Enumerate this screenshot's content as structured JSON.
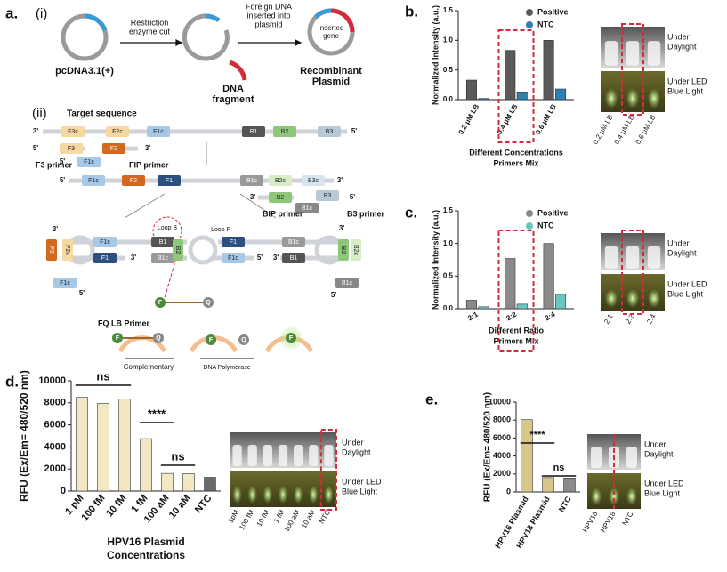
{
  "panels": {
    "a": "a.",
    "a_i": "(i)",
    "a_ii": "(ii)",
    "b": "b.",
    "c": "c.",
    "d": "d.",
    "e": "e."
  },
  "diagram": {
    "part_i": {
      "plasmid": "pcDNA3.1(+)",
      "cut": [
        "Restriction",
        "enzyme cut"
      ],
      "insert": [
        "Foreign DNA",
        "inserted into",
        "plasmid"
      ],
      "fragment": [
        "DNA",
        "fragment"
      ],
      "gene": [
        "Inserted",
        "gene"
      ],
      "recombinant": [
        "Recombinant",
        "Plasmid"
      ]
    },
    "part_ii": {
      "target": "Target sequence",
      "ends": [
        "3'",
        "5'"
      ],
      "segments": [
        "F3c",
        "F2c",
        "F1c",
        "B1",
        "B2",
        "B3",
        "F3",
        "F2",
        "F1c",
        "F1c",
        "F2",
        "F1",
        "B1c",
        "B2c",
        "B3c",
        "B2",
        "B3",
        "B1c",
        "F2",
        "F2c",
        "F1c",
        "F1",
        "B1",
        "B1c",
        "B2",
        "F1c",
        "F1",
        "F1c",
        "B1c",
        "B1",
        "B2",
        "B2c",
        "B1c"
      ],
      "primers": [
        "F3 primer",
        "FIP primer",
        "BIP primer",
        "B3 primer"
      ],
      "loops": [
        "Loop B",
        "Loop F"
      ],
      "fq": "FQ LB Primer",
      "fq_letters": [
        "F",
        "Q"
      ],
      "steps": [
        "Complementary",
        "DNA Polymerase"
      ]
    }
  },
  "chart_data": [
    {
      "type": "bar",
      "categories": [
        "0.2 μM LB",
        "0.4 μM LB",
        "0.6 μM LB"
      ],
      "series": [
        {
          "name": "Positive",
          "color": "#5a5a5a",
          "values": [
            0.33,
            0.83,
            1.0
          ]
        },
        {
          "name": "NTC",
          "color": "#2f7fb0",
          "values": [
            0.02,
            0.13,
            0.18
          ]
        }
      ],
      "y_label": "Normalized Intensity (a.u.)",
      "x_label": [
        "Different Concentrations",
        "Primers Mix"
      ],
      "ylim": [
        0,
        1.5
      ],
      "yticks": [
        {
          "value": 0,
          "label": "0.0"
        },
        {
          "value": 0.5,
          "label": "0.5"
        },
        {
          "value": 1.0,
          "label": "1.0"
        },
        {
          "value": 1.5,
          "label": "1.5"
        }
      ],
      "photo_labels": [
        [
          "Under",
          "Daylight"
        ],
        [
          "Under LED",
          "Blue Light"
        ]
      ],
      "lane_labels": [
        "0.2 μM LB",
        "0.4 μM LB",
        "0.6 μM LB"
      ]
    },
    {
      "type": "bar",
      "categories": [
        "2:1",
        "2:2",
        "2:4"
      ],
      "series": [
        {
          "name": "Positive",
          "color": "#8a8a8a",
          "values": [
            0.13,
            0.77,
            1.0
          ]
        },
        {
          "name": "NTC",
          "color": "#6cc6c0",
          "values": [
            0.03,
            0.07,
            0.22
          ]
        }
      ],
      "y_label": "Normalized Intensity (a.u.)",
      "x_label": [
        "Different Ratio",
        "Primers Mix"
      ],
      "ylim": [
        0,
        1.5
      ],
      "yticks": [
        {
          "value": 0,
          "label": "0.0"
        },
        {
          "value": 0.5,
          "label": "0.5"
        },
        {
          "value": 1.0,
          "label": "1.0"
        },
        {
          "value": 1.5,
          "label": "1.5"
        }
      ],
      "photo_labels": [
        [
          "Under",
          "Daylight"
        ],
        [
          "Under LED",
          "Blue Light"
        ]
      ],
      "lane_labels": [
        "2:1",
        "2:2",
        "2:4"
      ]
    },
    {
      "type": "bar",
      "categories": [
        "1 pM",
        "100 fM",
        "10 fM",
        "1 fM",
        "100 aM",
        "10 aM",
        "NTC"
      ],
      "values": [
        8500,
        7950,
        8350,
        4750,
        1600,
        1580,
        1250
      ],
      "colors": [
        "#f2e8c4",
        "#f2e8c4",
        "#f2e8c4",
        "#f2e8c4",
        "#f2e8c4",
        "#f2e8c4",
        "#6a6a6a"
      ],
      "y_label": "RFU (Ex/Em= 480/520 nm)",
      "x_label": [
        "HPV16 Plasmid",
        "Concentrations"
      ],
      "ylim": [
        0,
        10000
      ],
      "yticks": [
        0,
        2000,
        4000,
        6000,
        8000,
        10000
      ],
      "annotations": [
        "ns",
        "****",
        "ns"
      ],
      "photo_labels": [
        [
          "Under",
          "Daylight"
        ],
        [
          "Under LED",
          "Blue Light"
        ]
      ],
      "lane_labels": [
        "1pM",
        "100 fM",
        "10 fM",
        "1 fM",
        "100 aM",
        "10 aM",
        "NTC"
      ]
    },
    {
      "type": "bar",
      "categories": [
        "HPV16 Plasmid",
        "HPV18  Plasmid",
        "NTC"
      ],
      "values": [
        8050,
        1600,
        1550
      ],
      "colors": [
        "#d9c78a",
        "#d9c78a",
        "#8a8a8a"
      ],
      "y_label": "RFU (Ex/Em= 480/520 nm)",
      "x_label": [],
      "ylim": [
        0,
        10000
      ],
      "yticks": [
        0,
        2000,
        4000,
        6000,
        8000,
        10000
      ],
      "annotations": [
        "****",
        "ns"
      ],
      "photo_labels": [
        [
          "Under",
          "Daylight"
        ],
        [
          "Under LED",
          "Blue Light"
        ]
      ],
      "lane_labels": [
        "HPV16",
        "HPV18",
        "NTC"
      ]
    }
  ]
}
